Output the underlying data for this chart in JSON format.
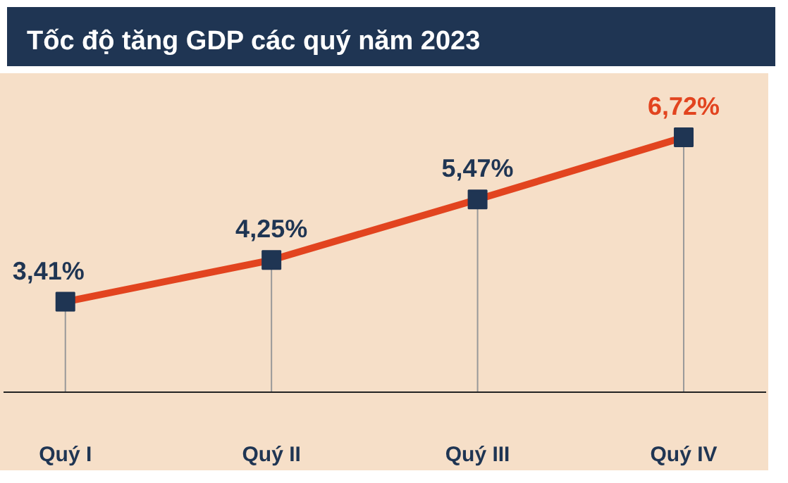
{
  "chart_data": {
    "type": "line",
    "title": "Tốc độ tăng GDP các quý năm 2023",
    "categories": [
      "Quý I",
      "Quý II",
      "Quý III",
      "Quý IV"
    ],
    "series": [
      {
        "color": "#e2441f",
        "values": [
          3.41,
          4.25,
          5.47,
          6.72
        ],
        "value_labels": [
          "3,41%",
          "4,25%",
          "5,47%",
          "6,72%"
        ]
      }
    ],
    "marker": "square",
    "grid": "x"
  }
}
